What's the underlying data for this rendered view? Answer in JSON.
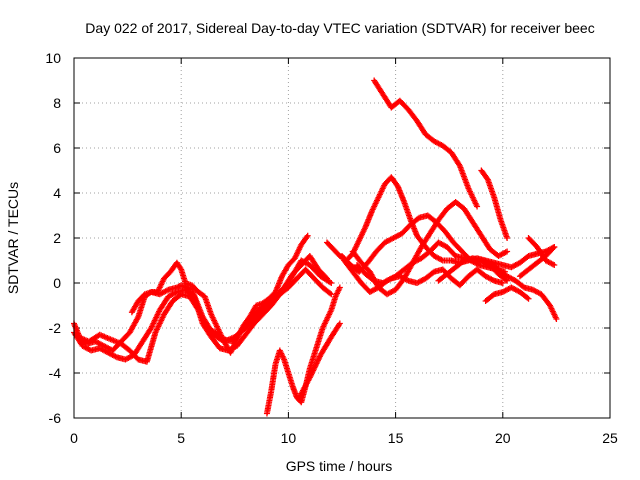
{
  "chart_data": {
    "type": "scatter",
    "title": "Day 022 of 2017, Sidereal Day-to-day VTEC variation (SDTVAR) for receiver beec",
    "xlabel": "GPS time / hours",
    "ylabel": "SDTVAR / TECUs",
    "xlim": [
      0,
      25
    ],
    "ylim": [
      -6,
      10
    ],
    "xticks": [
      0,
      5,
      10,
      15,
      20,
      25
    ],
    "yticks": [
      -6,
      -4,
      -2,
      0,
      2,
      4,
      6,
      8,
      10
    ],
    "grid": true,
    "marker": "plus",
    "color": "#ff0000",
    "series": [
      {
        "x": [
          0.0,
          0.3,
          0.6,
          1.0,
          1.4,
          1.8,
          2.2,
          2.6,
          3.0,
          3.3,
          3.6,
          4.0,
          4.4,
          4.8,
          5.0,
          5.5,
          6.0,
          6.5,
          7.0,
          7.5,
          8.0,
          8.5,
          9.0,
          9.5,
          10.0,
          10.3,
          10.6,
          11.0,
          11.5,
          12.0
        ],
        "y": [
          -1.8,
          -2.5,
          -2.7,
          -2.6,
          -2.8,
          -3.0,
          -2.6,
          -2.2,
          -1.5,
          -0.6,
          -0.4,
          -0.5,
          -0.3,
          -0.2,
          -0.1,
          -0.3,
          -1.5,
          -2.3,
          -2.6,
          -2.4,
          -2.0,
          -1.5,
          -1.0,
          -0.6,
          0.0,
          0.5,
          1.0,
          0.8,
          0.3,
          0.0
        ]
      },
      {
        "x": [
          0.0,
          0.4,
          0.8,
          1.2,
          1.6,
          2.0,
          2.4,
          2.8,
          3.2,
          3.6,
          4.0,
          4.4,
          4.8,
          5.2,
          5.6,
          6.0,
          6.4,
          6.8,
          7.2,
          7.6,
          8.0,
          8.4,
          8.8,
          9.2,
          9.6,
          10.0,
          10.4,
          10.8,
          11.2,
          11.6,
          12.0
        ],
        "y": [
          -2.2,
          -2.8,
          -3.0,
          -2.9,
          -3.1,
          -3.3,
          -3.4,
          -3.2,
          -2.6,
          -2.0,
          -1.2,
          -0.6,
          -0.4,
          -0.3,
          -0.6,
          -1.8,
          -2.4,
          -2.9,
          -3.0,
          -2.8,
          -2.3,
          -1.8,
          -1.4,
          -1.0,
          -0.5,
          -0.2,
          0.2,
          0.6,
          0.2,
          -0.2,
          -0.5
        ]
      },
      {
        "x": [
          0.2,
          0.7,
          1.2,
          1.7,
          2.2,
          2.6,
          3.0,
          3.4,
          3.8,
          4.2,
          4.6,
          5.0,
          5.4,
          5.8,
          6.2,
          6.6,
          7.0,
          7.4,
          7.8,
          8.2,
          8.6,
          9.0,
          9.4,
          9.8,
          10.2,
          10.6,
          11.0,
          11.4,
          11.8
        ],
        "y": [
          -2.4,
          -2.6,
          -2.3,
          -2.5,
          -2.7,
          -3.0,
          -3.4,
          -3.5,
          -2.2,
          -1.4,
          -0.8,
          -0.5,
          -0.6,
          -1.2,
          -2.0,
          -2.2,
          -2.5,
          -2.6,
          -2.1,
          -1.6,
          -1.2,
          -0.9,
          -0.6,
          -0.2,
          0.4,
          0.8,
          1.2,
          0.6,
          0.2
        ]
      },
      {
        "x": [
          2.7,
          3.0,
          3.3,
          3.6,
          3.9,
          4.2,
          4.5,
          4.8,
          5.0,
          5.2,
          5.5,
          5.8,
          6.1,
          6.4,
          6.7,
          7.0,
          7.3,
          7.6,
          7.9,
          8.2,
          8.5,
          8.8,
          9.1,
          9.4,
          9.7,
          10.0,
          10.3,
          10.6,
          10.9
        ],
        "y": [
          -1.3,
          -0.8,
          -0.5,
          -0.4,
          -0.4,
          0.2,
          0.5,
          0.9,
          0.6,
          0.0,
          -0.1,
          -0.4,
          -0.6,
          -1.4,
          -2.0,
          -2.6,
          -3.1,
          -2.5,
          -1.9,
          -1.5,
          -1.0,
          -0.9,
          -0.7,
          -0.4,
          0.3,
          0.8,
          1.1,
          1.7,
          2.1
        ]
      },
      {
        "x": [
          9.0,
          9.2,
          9.4,
          9.6,
          9.8,
          10.0,
          10.2,
          10.4,
          10.6,
          10.8,
          11.0,
          11.2,
          11.4,
          11.6,
          11.8,
          12.0,
          12.2,
          12.4
        ],
        "y": [
          -5.8,
          -4.8,
          -3.6,
          -3.0,
          -3.4,
          -4.0,
          -4.6,
          -5.1,
          -5.3,
          -4.6,
          -3.8,
          -3.2,
          -2.6,
          -2.0,
          -1.6,
          -1.2,
          -0.6,
          -0.2
        ]
      },
      {
        "x": [
          10.5,
          11.0,
          11.5,
          12.0,
          12.4
        ],
        "y": [
          -5.1,
          -4.2,
          -3.2,
          -2.4,
          -1.8
        ]
      },
      {
        "x": [
          11.8,
          12.1,
          12.4,
          12.7,
          13.0,
          13.3,
          13.6,
          13.9,
          14.2,
          14.5,
          14.8,
          15.1,
          15.4,
          15.7,
          16.0,
          16.4,
          16.8,
          17.2,
          17.6,
          18.0,
          18.4,
          18.8,
          19.2,
          19.6,
          20.0,
          20.4,
          20.8,
          21.2,
          21.6,
          22.0,
          22.4
        ],
        "y": [
          1.8,
          1.5,
          1.2,
          1.0,
          1.3,
          1.9,
          2.5,
          3.2,
          3.8,
          4.4,
          4.7,
          4.3,
          3.6,
          2.8,
          2.1,
          1.6,
          1.2,
          1.0,
          1.0,
          0.9,
          1.0,
          1.1,
          1.0,
          0.9,
          0.8,
          0.7,
          0.9,
          1.2,
          1.3,
          1.4,
          1.6
        ]
      },
      {
        "x": [
          12.5,
          12.9,
          13.3,
          13.7,
          14.1,
          14.5,
          14.9,
          15.3,
          15.7,
          16.1,
          16.5,
          16.9,
          17.3,
          17.7,
          18.1,
          18.5,
          18.9,
          19.3,
          19.7,
          20.1
        ],
        "y": [
          1.2,
          0.8,
          0.5,
          0.9,
          1.4,
          1.8,
          2.0,
          2.2,
          2.6,
          2.9,
          3.0,
          2.7,
          2.3,
          1.8,
          1.4,
          1.0,
          0.8,
          0.7,
          0.6,
          0.5
        ]
      },
      {
        "x": [
          12.6,
          13.0,
          13.4,
          13.8,
          14.2,
          14.6,
          15.0,
          15.4,
          15.8,
          16.2,
          16.6,
          17.0,
          17.4,
          17.8,
          18.2,
          18.6,
          19.0,
          19.4,
          19.8,
          20.2
        ],
        "y": [
          1.0,
          0.5,
          0.0,
          -0.4,
          -0.2,
          0.1,
          0.3,
          0.6,
          0.9,
          1.1,
          1.4,
          1.8,
          1.6,
          1.2,
          1.1,
          1.0,
          1.0,
          0.8,
          0.4,
          0.1
        ]
      },
      {
        "x": [
          13.0,
          13.4,
          13.8,
          14.2,
          14.6,
          15.0,
          15.4,
          15.8,
          16.2,
          16.6,
          17.0,
          17.4,
          17.8,
          18.2,
          18.6,
          19.0,
          19.4,
          19.8,
          20.2
        ],
        "y": [
          1.4,
          0.9,
          0.5,
          -0.2,
          -0.5,
          -0.3,
          0.2,
          0.9,
          1.6,
          2.2,
          2.8,
          3.3,
          3.6,
          3.3,
          2.7,
          2.1,
          1.5,
          1.2,
          1.4
        ]
      },
      {
        "x": [
          13.2,
          13.6,
          14.0,
          14.4,
          14.8,
          15.2,
          15.6,
          16.0,
          16.4,
          16.8,
          17.2,
          17.6,
          18.0,
          18.4,
          18.8,
          19.2,
          19.6,
          20.0
        ],
        "y": [
          0.8,
          0.4,
          0.1,
          0.0,
          0.2,
          0.3,
          0.1,
          0.0,
          0.2,
          0.5,
          0.6,
          0.2,
          -0.1,
          0.3,
          0.6,
          0.3,
          0.1,
          0.0
        ]
      },
      {
        "x": [
          14.0,
          14.4,
          14.8,
          15.2,
          15.6,
          16.0,
          16.4,
          16.8,
          17.2,
          17.6,
          18.0,
          18.4,
          18.8
        ],
        "y": [
          9.0,
          8.4,
          7.8,
          8.1,
          7.7,
          7.2,
          6.6,
          6.3,
          6.1,
          5.8,
          5.2,
          4.2,
          3.4
        ]
      },
      {
        "x": [
          17.0,
          17.4,
          17.8,
          18.2,
          18.6,
          19.0,
          19.4,
          19.8,
          20.2,
          20.6,
          21.0,
          21.4,
          21.8,
          22.2,
          22.5
        ],
        "y": [
          0.1,
          0.4,
          0.7,
          1.0,
          1.1,
          1.0,
          0.9,
          0.6,
          0.3,
          0.1,
          -0.2,
          -0.3,
          -0.5,
          -1.0,
          -1.6
        ]
      },
      {
        "x": [
          19.0,
          19.3,
          19.6,
          19.9,
          20.2
        ],
        "y": [
          5.0,
          4.6,
          3.8,
          2.8,
          2.0
        ]
      },
      {
        "x": [
          19.2,
          19.6,
          20.0,
          20.4,
          20.8,
          21.2
        ],
        "y": [
          -0.8,
          -0.5,
          -0.4,
          -0.2,
          -0.4,
          -0.7
        ]
      },
      {
        "x": [
          20.8,
          21.2,
          21.6,
          22.0,
          22.4
        ],
        "y": [
          0.3,
          0.6,
          0.9,
          1.2,
          1.6
        ]
      },
      {
        "x": [
          21.2,
          21.6,
          22.0,
          22.4
        ],
        "y": [
          2.0,
          1.6,
          1.0,
          0.8
        ]
      }
    ]
  }
}
